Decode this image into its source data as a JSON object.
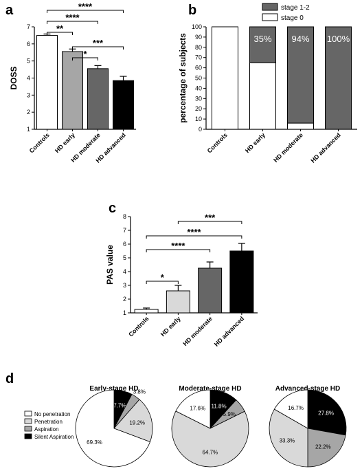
{
  "panels": {
    "a": "a",
    "b": "b",
    "c": "c",
    "d": "d"
  },
  "chart_data": [
    {
      "panel": "a",
      "type": "bar",
      "ylabel": "DOSS",
      "ylim": [
        1,
        7
      ],
      "yticks": [
        "1",
        "2",
        "3",
        "4",
        "5",
        "6",
        "7"
      ],
      "categories": [
        "Controls",
        "HD early",
        "HD moderate",
        "HD advanced"
      ],
      "values": [
        6.5,
        5.55,
        4.55,
        3.85
      ],
      "errors": [
        0.08,
        0.15,
        0.18,
        0.25
      ],
      "colors": [
        "#ffffff",
        "#a6a6a6",
        "#666666",
        "#000000"
      ],
      "significance": [
        {
          "from": 0,
          "to": 3,
          "label": "****"
        },
        {
          "from": 0,
          "to": 2,
          "label": "****"
        },
        {
          "from": 0,
          "to": 1,
          "label": "**"
        },
        {
          "from": 1,
          "to": 3,
          "label": "***"
        },
        {
          "from": 1,
          "to": 2,
          "label": "*"
        }
      ]
    },
    {
      "panel": "b",
      "type": "bar",
      "stacked": true,
      "ylabel": "percentage of subjects",
      "ylim": [
        0,
        100
      ],
      "yticks": [
        "0",
        "10",
        "20",
        "30",
        "40",
        "50",
        "60",
        "70",
        "80",
        "90",
        "100"
      ],
      "categories": [
        "Controls",
        "HD early",
        "HD moderate",
        "HD advanced"
      ],
      "series": [
        {
          "name": "stage 0",
          "values": [
            100,
            65,
            6,
            0
          ],
          "color": "#ffffff"
        },
        {
          "name": "stage 1-2",
          "values": [
            0,
            35,
            94,
            100
          ],
          "color": "#666666"
        }
      ],
      "data_labels": [
        "",
        "35%",
        "94%",
        "100%"
      ],
      "legend": "top-right"
    },
    {
      "panel": "c",
      "type": "bar",
      "ylabel": "PAS value",
      "ylim": [
        1,
        8
      ],
      "yticks": [
        "1",
        "2",
        "3",
        "4",
        "5",
        "6",
        "7",
        "8"
      ],
      "categories": [
        "Controls",
        "HD early",
        "HD moderate",
        "HD advanced"
      ],
      "values": [
        1.25,
        2.6,
        4.25,
        5.5
      ],
      "errors": [
        0.1,
        0.4,
        0.45,
        0.55
      ],
      "colors": [
        "#ffffff",
        "#d9d9d9",
        "#666666",
        "#000000"
      ],
      "significance": [
        {
          "from": 1,
          "to": 3,
          "label": "***"
        },
        {
          "from": 0,
          "to": 3,
          "label": "****"
        },
        {
          "from": 0,
          "to": 2,
          "label": "****"
        },
        {
          "from": 0,
          "to": 1,
          "label": "*"
        }
      ]
    },
    {
      "panel": "d",
      "type": "pie",
      "legend_entries": [
        {
          "name": "No penetration",
          "color": "#ffffff"
        },
        {
          "name": "Penetration",
          "color": "#d9d9d9"
        },
        {
          "name": "Aspiration",
          "color": "#a6a6a6"
        },
        {
          "name": "Silent Aspiration",
          "color": "#000000"
        }
      ],
      "pies": [
        {
          "title": "Early-stage HD",
          "slices": [
            {
              "label": "7.7%",
              "value": 7.7,
              "color": "#000000"
            },
            {
              "label": "3.8%",
              "value": 3.8,
              "color": "#a6a6a6"
            },
            {
              "label": "19.2%",
              "value": 19.2,
              "color": "#d9d9d9"
            },
            {
              "label": "69.3%",
              "value": 69.3,
              "color": "#ffffff"
            }
          ]
        },
        {
          "title": "Moderate-stage HD",
          "slices": [
            {
              "label": "11.8%",
              "value": 11.8,
              "color": "#000000"
            },
            {
              "label": "5.9%",
              "value": 5.9,
              "color": "#a6a6a6"
            },
            {
              "label": "64.7%",
              "value": 64.7,
              "color": "#d9d9d9"
            },
            {
              "label": "17.6%",
              "value": 17.6,
              "color": "#ffffff"
            }
          ]
        },
        {
          "title": "Advanced-stage HD",
          "slices": [
            {
              "label": "27.8%",
              "value": 27.8,
              "color": "#000000"
            },
            {
              "label": "22.2%",
              "value": 22.2,
              "color": "#a6a6a6"
            },
            {
              "label": "33.3%",
              "value": 33.3,
              "color": "#d9d9d9"
            },
            {
              "label": "16.7%",
              "value": 16.7,
              "color": "#ffffff"
            }
          ]
        }
      ]
    }
  ]
}
